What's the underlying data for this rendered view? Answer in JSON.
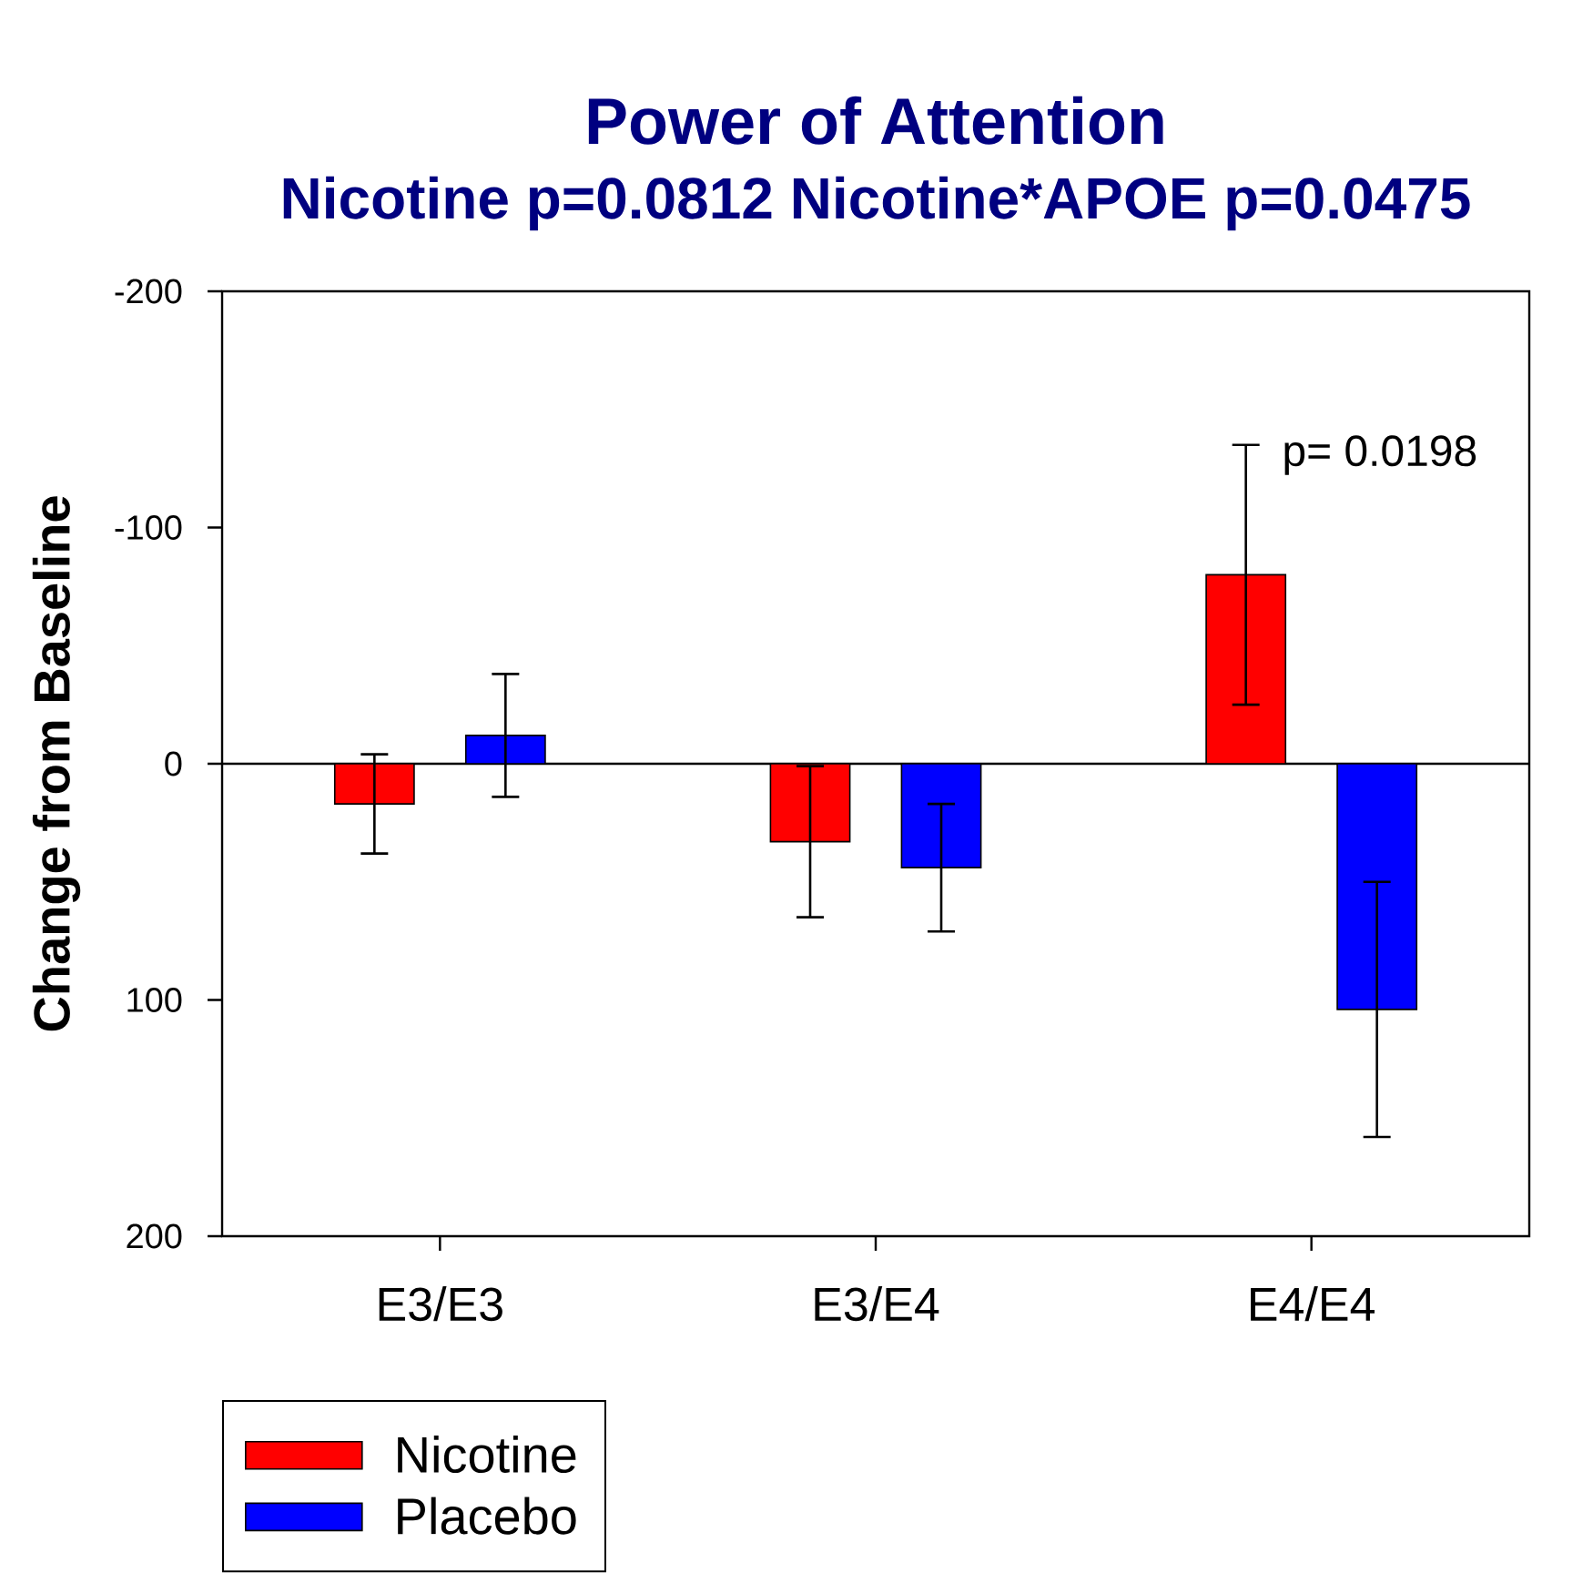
{
  "chart_data": {
    "type": "bar",
    "title": "Power of Attention",
    "subtitle": "Nicotine p=0.0812   Nicotine*APOE p=0.0475",
    "ylabel": "Change from Baseline",
    "categories": [
      "E3/E3",
      "E3/E4",
      "E4/E4"
    ],
    "series": [
      {
        "name": "Nicotine",
        "color": "#ff0000",
        "values": [
          17,
          33,
          -80
        ],
        "errors": [
          21,
          32,
          55
        ]
      },
      {
        "name": "Placebo",
        "color": "#0000ff",
        "values": [
          -12,
          44,
          104
        ],
        "errors": [
          26,
          27,
          54
        ]
      }
    ],
    "ylim": [
      200,
      -200
    ],
    "yticks": [
      -200,
      -100,
      0,
      100,
      200
    ],
    "ref_lines": [
      {
        "axis": "y",
        "value": 0,
        "color": "#000000"
      }
    ],
    "annotations": [
      "p= 0.0198"
    ],
    "legend": "bottom left",
    "grid": false
  }
}
